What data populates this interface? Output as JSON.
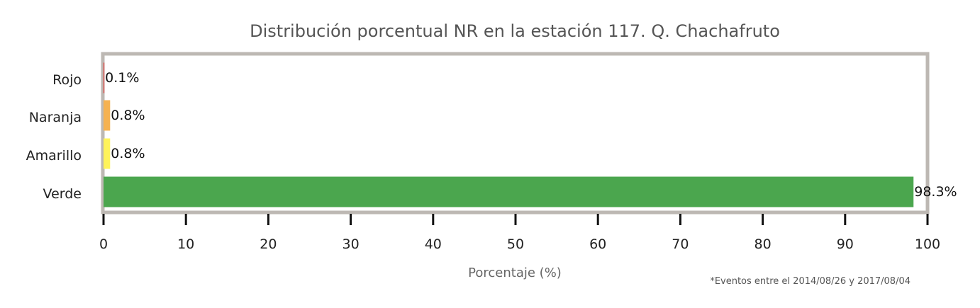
{
  "chart_data": {
    "type": "bar",
    "orientation": "horizontal",
    "title": "Distribución porcentual NR en la estación 117. Q. Chachafruto",
    "xlabel": "Porcentaje (%)",
    "ylabel": "",
    "categories": [
      "Rojo",
      "Naranja",
      "Amarillo",
      "Verde"
    ],
    "values": [
      0.1,
      0.8,
      0.8,
      98.3
    ],
    "value_labels": [
      "0.1%",
      "0.8%",
      "0.8%",
      "98.3%"
    ],
    "colors": [
      "#e53935",
      "#f5b251",
      "#fff35a",
      "#4ba64e"
    ],
    "xlim": [
      0,
      100
    ],
    "xticks": [
      "0",
      "10",
      "20",
      "30",
      "40",
      "50",
      "60",
      "70",
      "80",
      "90",
      "100"
    ],
    "grid": false,
    "legend": "none"
  },
  "footnote": "*Eventos entre el 2014/08/26 y 2017/08/04"
}
